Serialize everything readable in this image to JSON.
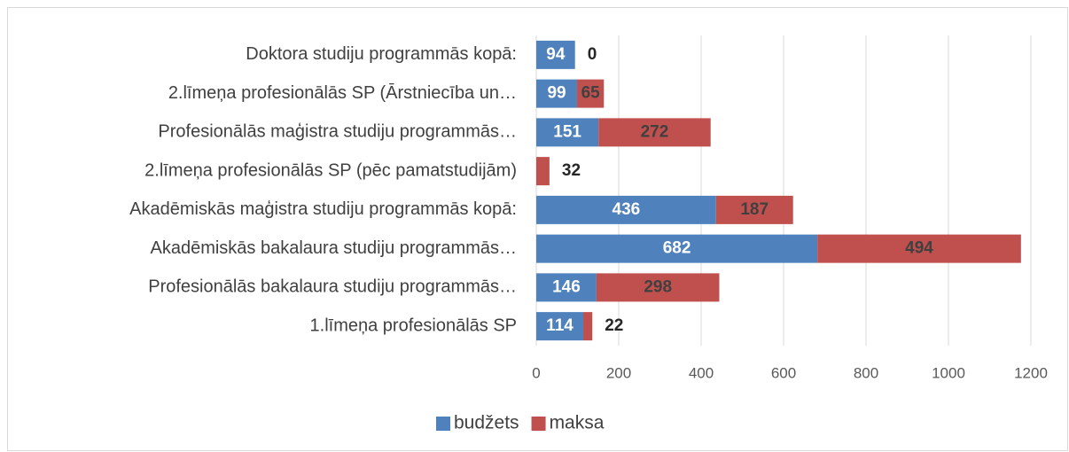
{
  "chart_data": {
    "type": "bar",
    "orientation": "horizontal",
    "stacked": true,
    "categories": [
      "Doktora studiju programmās kopā:",
      "2.līmeņa profesionālās SP (Ārstniecība un…",
      "Profesionālās maģistra studiju programmās…",
      "2.līmeņa profesionālās SP (pēc pamatstudijām)",
      "Akadēmiskās maģistra studiju programmās kopā:",
      "Akadēmiskās bakalaura studiju programmās…",
      "Profesionālās bakalaura studiju programmās…",
      "1.līmeņa profesionālās SP"
    ],
    "series": [
      {
        "name": "budžets",
        "color": "#4f81bd",
        "values": [
          94,
          99,
          151,
          null,
          436,
          682,
          146,
          114
        ]
      },
      {
        "name": "maksa",
        "color": "#c0504d",
        "values": [
          0,
          65,
          272,
          32,
          187,
          494,
          298,
          22
        ]
      }
    ],
    "xlim": [
      0,
      1200
    ],
    "xticks": [
      0,
      200,
      400,
      600,
      800,
      1000,
      1200
    ],
    "grid": true,
    "legend": "bottom"
  }
}
